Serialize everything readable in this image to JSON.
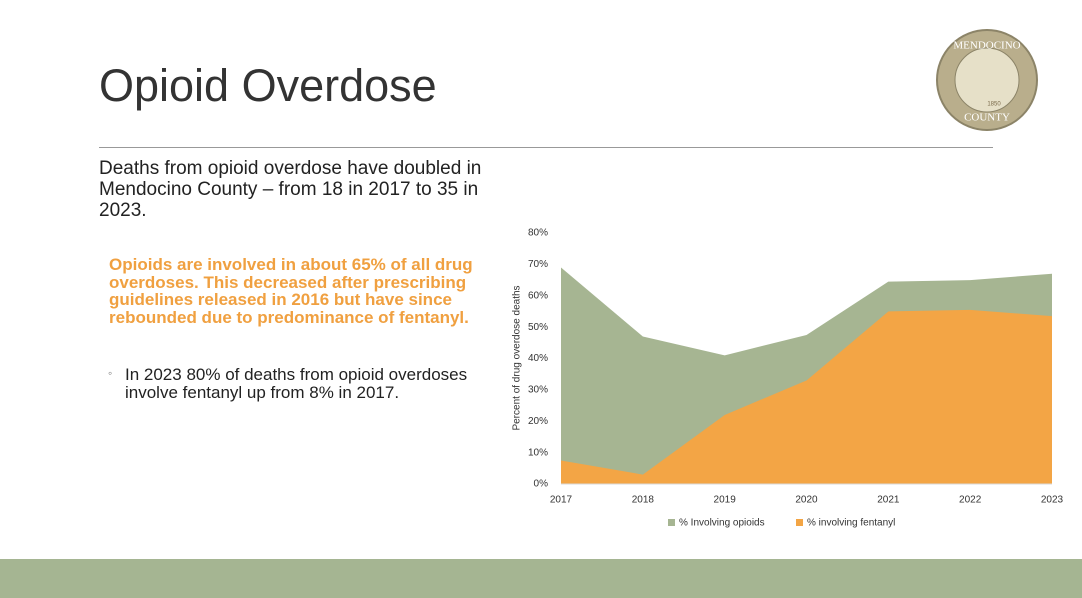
{
  "slide": {
    "title": "Opioid Overdose",
    "logo": {
      "top": "MENDOCINO",
      "bottom": "COUNTY",
      "year": "1850"
    },
    "intro": "Deaths from opioid overdose have doubled in Mendocino County – from 18 in 2017 to 35 in 2023.",
    "highlight": "Opioids are involved in about 65% of all drug overdoses. This decreased after prescribing guidelines released in 2016 but have since rebounded due to predominance of fentanyl.",
    "bullets": [
      "In 2023 80% of deaths from opioid overdoses involve fentanyl up from 8% in 2017."
    ]
  },
  "chart_data": {
    "type": "area",
    "y_label": "Percent of drug overdose deaths",
    "categories": [
      "2017",
      "2018",
      "2019",
      "2020",
      "2021",
      "2022",
      "2023"
    ],
    "series": [
      {
        "name": "% Involving opioids",
        "color": "#a6b592",
        "values": [
          69,
          47,
          41,
          47.5,
          64.5,
          65,
          67
        ]
      },
      {
        "name": "% involving fentanyl",
        "color": "#f3a545",
        "values": [
          7.5,
          3,
          22,
          33,
          55,
          55.5,
          53.5
        ]
      }
    ],
    "ylim": [
      0,
      80
    ],
    "yticks": [
      {
        "value": 0,
        "label": "0%"
      },
      {
        "value": 10,
        "label": "10%"
      },
      {
        "value": 20,
        "label": "20%"
      },
      {
        "value": 30,
        "label": "30%"
      },
      {
        "value": 40,
        "label": "40%"
      },
      {
        "value": 50,
        "label": "50%"
      },
      {
        "value": 60,
        "label": "60%"
      },
      {
        "value": 70,
        "label": "70%"
      },
      {
        "value": 80,
        "label": "80%"
      }
    ],
    "grid": false,
    "legend": "bottom"
  }
}
